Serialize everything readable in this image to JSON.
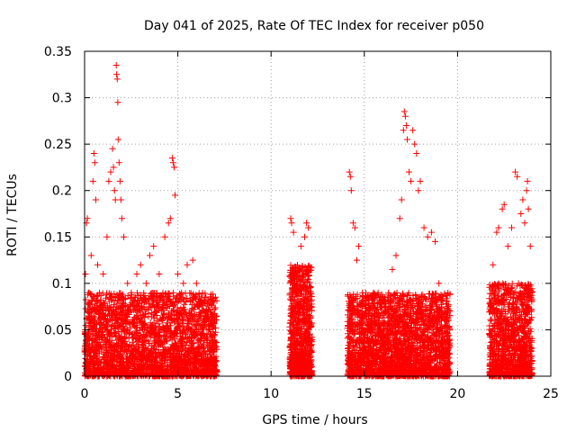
{
  "chart_data": {
    "type": "scatter",
    "title": "Day 041 of 2025, Rate Of TEC Index for receiver p050",
    "xlabel": "GPS time / hours",
    "ylabel": "ROTI / TECUs",
    "xlim": [
      0,
      25
    ],
    "ylim": [
      0,
      0.35
    ],
    "x_ticks": [
      0,
      5,
      10,
      15,
      20,
      25
    ],
    "x_tick_labels": [
      "0",
      "5",
      "10",
      "15",
      "20",
      "25"
    ],
    "y_ticks": [
      0,
      0.05,
      0.1,
      0.15,
      0.2,
      0.25,
      0.3,
      0.35
    ],
    "y_tick_labels": [
      "0",
      "0.05",
      "0.1",
      "0.15",
      "0.2",
      "0.25",
      "0.3",
      "0.35"
    ],
    "grid": true,
    "marker": "+",
    "marker_color": "#ff0000",
    "series": [
      {
        "name": "ROTI",
        "points": [
          [
            0.05,
            0.11
          ],
          [
            0.1,
            0.165
          ],
          [
            0.15,
            0.17
          ],
          [
            0.2,
            0.09
          ],
          [
            0.3,
            0.06
          ],
          [
            0.35,
            0.13
          ],
          [
            0.45,
            0.21
          ],
          [
            0.5,
            0.24
          ],
          [
            0.55,
            0.23
          ],
          [
            0.6,
            0.19
          ],
          [
            0.7,
            0.12
          ],
          [
            0.8,
            0.09
          ],
          [
            1.0,
            0.11
          ],
          [
            1.2,
            0.15
          ],
          [
            1.3,
            0.21
          ],
          [
            1.4,
            0.22
          ],
          [
            1.5,
            0.245
          ],
          [
            1.55,
            0.225
          ],
          [
            1.6,
            0.2
          ],
          [
            1.65,
            0.19
          ],
          [
            1.7,
            0.335
          ],
          [
            1.72,
            0.325
          ],
          [
            1.75,
            0.32
          ],
          [
            1.78,
            0.295
          ],
          [
            1.8,
            0.255
          ],
          [
            1.85,
            0.23
          ],
          [
            1.9,
            0.21
          ],
          [
            1.95,
            0.19
          ],
          [
            2.0,
            0.17
          ],
          [
            2.1,
            0.15
          ],
          [
            2.3,
            0.1
          ],
          [
            2.5,
            0.09
          ],
          [
            2.8,
            0.11
          ],
          [
            3.0,
            0.12
          ],
          [
            3.3,
            0.1
          ],
          [
            3.5,
            0.13
          ],
          [
            3.7,
            0.14
          ],
          [
            4.0,
            0.11
          ],
          [
            4.2,
            0.09
          ],
          [
            4.3,
            0.15
          ],
          [
            4.5,
            0.165
          ],
          [
            4.6,
            0.17
          ],
          [
            4.7,
            0.235
          ],
          [
            4.75,
            0.23
          ],
          [
            4.8,
            0.225
          ],
          [
            4.85,
            0.195
          ],
          [
            5.0,
            0.11
          ],
          [
            5.3,
            0.1
          ],
          [
            5.5,
            0.12
          ],
          [
            5.8,
            0.125
          ],
          [
            6.0,
            0.1
          ],
          [
            6.3,
            0.08
          ],
          [
            6.5,
            0.07
          ],
          [
            6.8,
            0.06
          ],
          [
            7.0,
            0.065
          ],
          [
            11.05,
            0.17
          ],
          [
            11.1,
            0.165
          ],
          [
            11.2,
            0.155
          ],
          [
            11.4,
            0.1
          ],
          [
            11.6,
            0.14
          ],
          [
            11.8,
            0.15
          ],
          [
            11.9,
            0.165
          ],
          [
            12.0,
            0.16
          ],
          [
            14.2,
            0.22
          ],
          [
            14.25,
            0.215
          ],
          [
            14.3,
            0.2
          ],
          [
            14.4,
            0.165
          ],
          [
            14.5,
            0.16
          ],
          [
            14.6,
            0.125
          ],
          [
            14.7,
            0.14
          ],
          [
            14.9,
            0.09
          ],
          [
            15.2,
            0.07
          ],
          [
            15.5,
            0.09
          ],
          [
            15.8,
            0.08
          ],
          [
            16.0,
            0.085
          ],
          [
            16.3,
            0.09
          ],
          [
            16.5,
            0.115
          ],
          [
            16.7,
            0.13
          ],
          [
            16.9,
            0.17
          ],
          [
            17.0,
            0.19
          ],
          [
            17.1,
            0.265
          ],
          [
            17.15,
            0.285
          ],
          [
            17.2,
            0.28
          ],
          [
            17.25,
            0.27
          ],
          [
            17.3,
            0.255
          ],
          [
            17.4,
            0.22
          ],
          [
            17.5,
            0.21
          ],
          [
            17.6,
            0.265
          ],
          [
            17.7,
            0.25
          ],
          [
            17.8,
            0.24
          ],
          [
            17.9,
            0.2
          ],
          [
            18.0,
            0.21
          ],
          [
            18.2,
            0.16
          ],
          [
            18.4,
            0.15
          ],
          [
            18.6,
            0.155
          ],
          [
            18.8,
            0.145
          ],
          [
            19.0,
            0.1
          ],
          [
            19.3,
            0.07
          ],
          [
            19.5,
            0.06
          ],
          [
            21.9,
            0.12
          ],
          [
            22.1,
            0.155
          ],
          [
            22.2,
            0.16
          ],
          [
            22.4,
            0.18
          ],
          [
            22.5,
            0.185
          ],
          [
            22.7,
            0.14
          ],
          [
            22.9,
            0.16
          ],
          [
            23.1,
            0.22
          ],
          [
            23.2,
            0.215
          ],
          [
            23.4,
            0.175
          ],
          [
            23.5,
            0.19
          ],
          [
            23.6,
            0.165
          ],
          [
            23.7,
            0.2
          ],
          [
            23.75,
            0.21
          ],
          [
            23.8,
            0.18
          ],
          [
            23.9,
            0.14
          ]
        ],
        "dense_clusters": [
          {
            "x_range": [
              0,
              7.1
            ],
            "y_range": [
              0,
              0.09
            ],
            "count": 2600
          },
          {
            "x_range": [
              11.0,
              12.2
            ],
            "y_range": [
              0,
              0.12
            ],
            "count": 900
          },
          {
            "x_range": [
              14.1,
              19.6
            ],
            "y_range": [
              0,
              0.09
            ],
            "count": 2400
          },
          {
            "x_range": [
              21.7,
              24.0
            ],
            "y_range": [
              0,
              0.1
            ],
            "count": 1100
          }
        ]
      }
    ]
  }
}
